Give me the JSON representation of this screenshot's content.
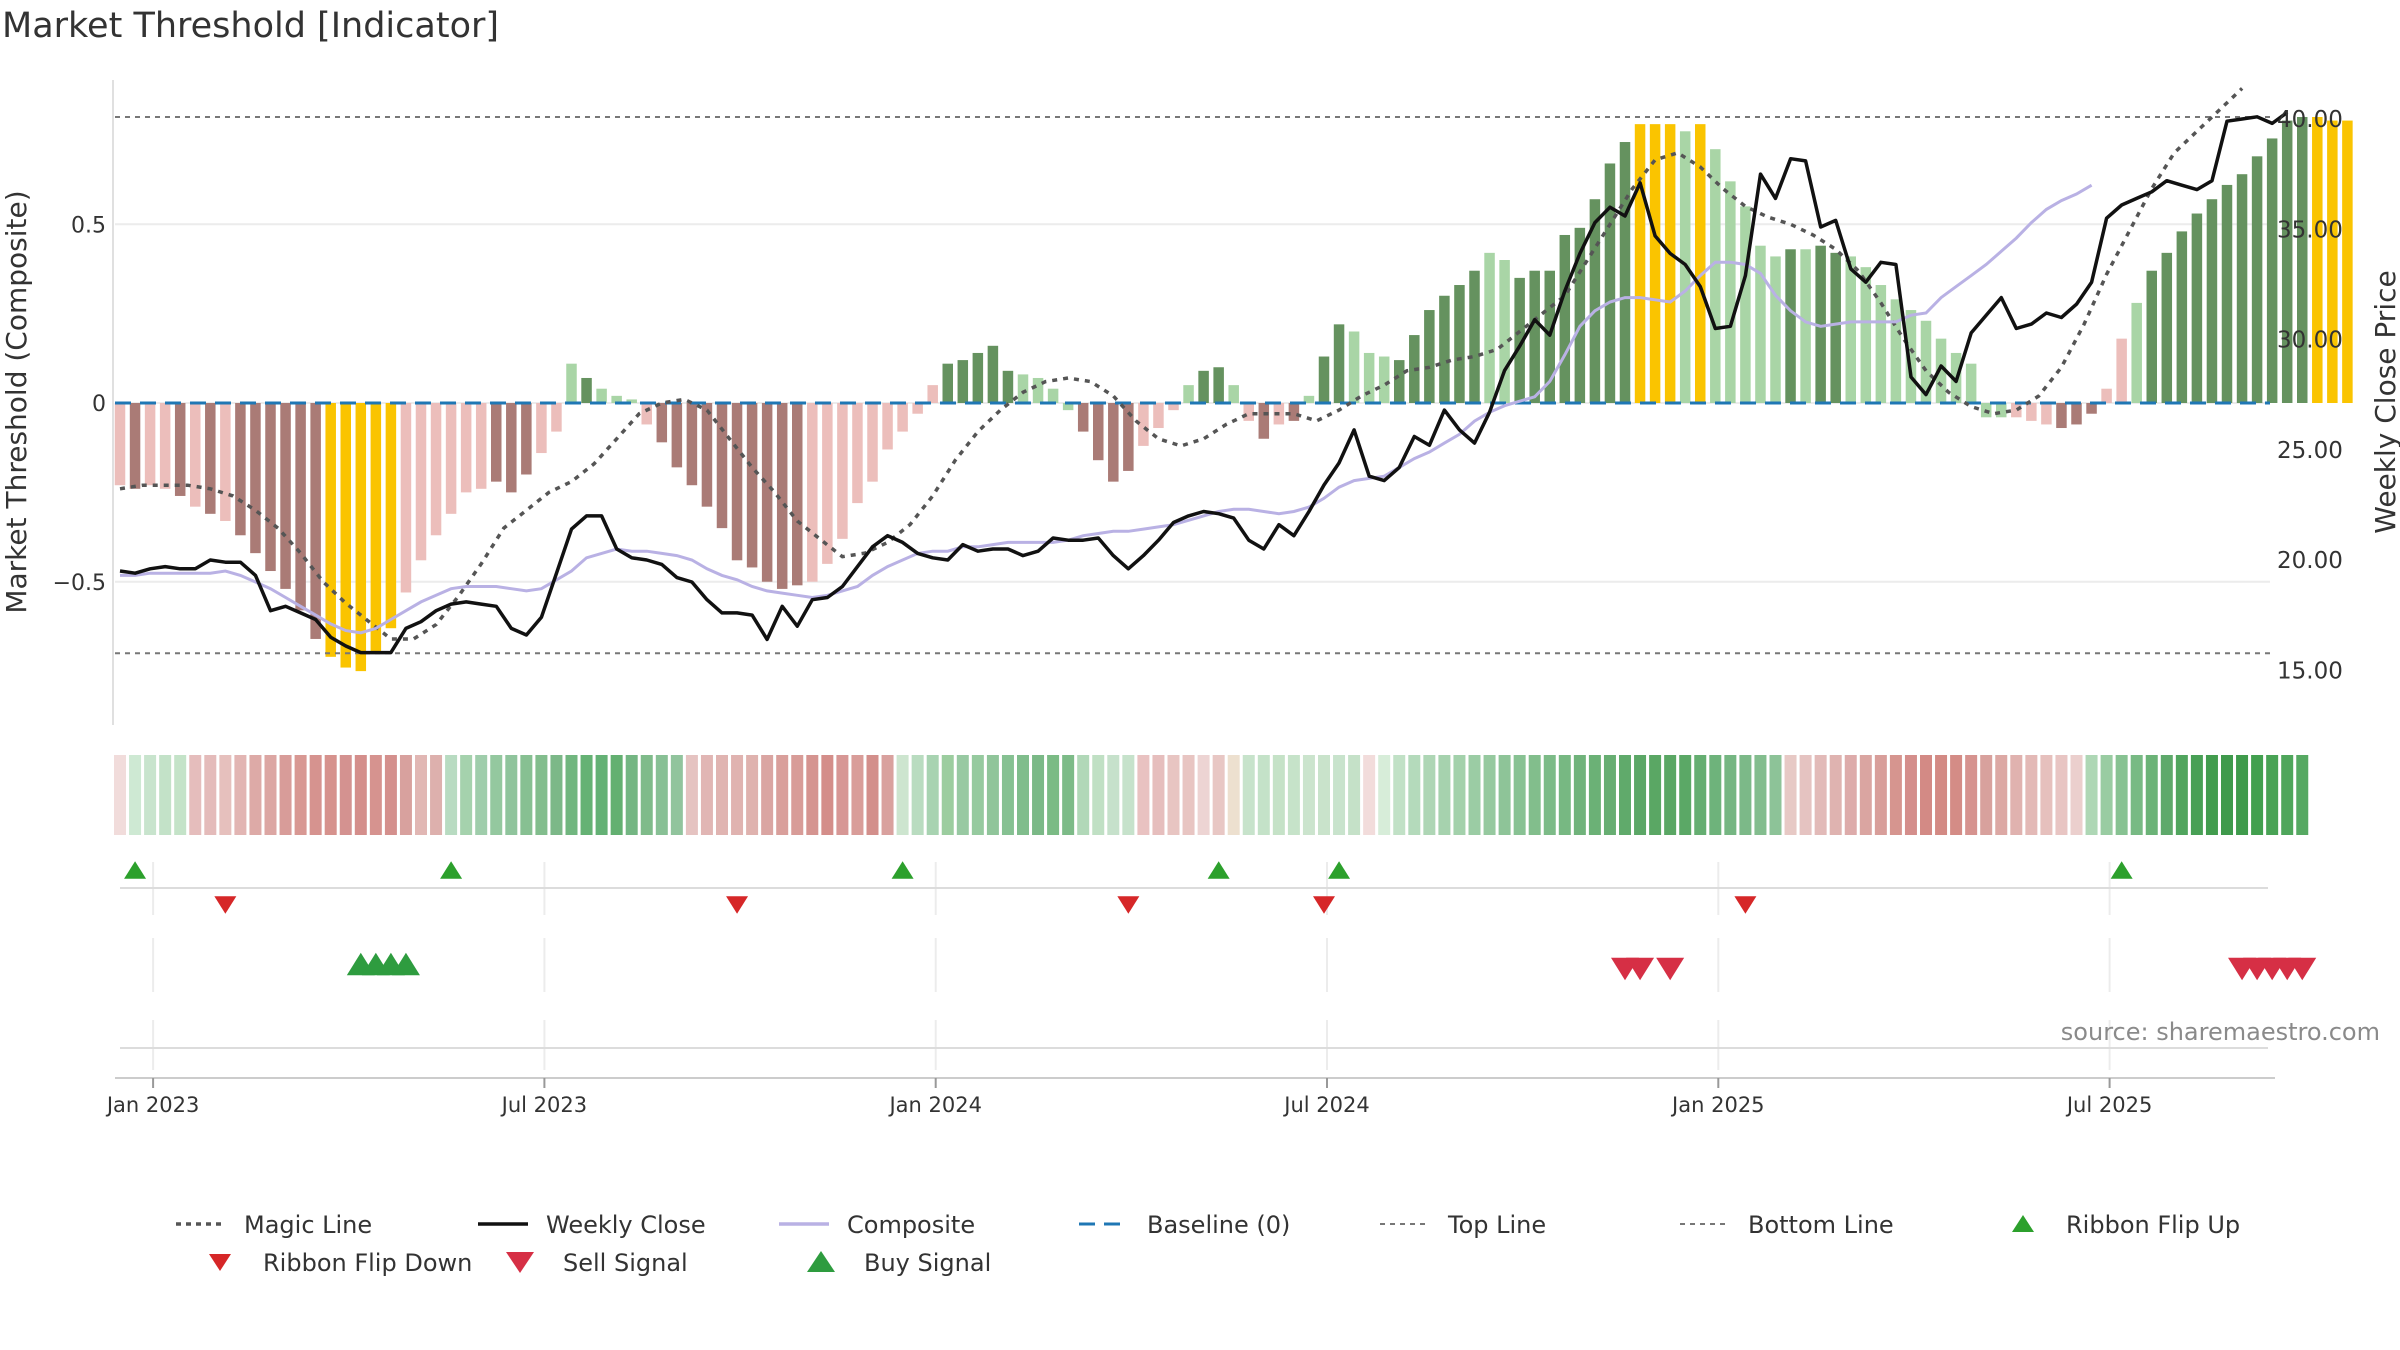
{
  "chart_data": {
    "type": "bar",
    "title": "Market Threshold [Indicator]",
    "ylabel_left": "Market Threshold (Composite)",
    "ylabel_right": "Weekly Close Price",
    "source": "source: sharemaestro.com",
    "ylim_left": [
      -0.9,
      0.9
    ],
    "ylim_right": [
      12.0,
      42.0
    ],
    "left_ticks": [
      {
        "v": 0.5,
        "label": "0.5"
      },
      {
        "v": 0,
        "label": "0"
      },
      {
        "v": -0.5,
        "label": "−0.5"
      }
    ],
    "right_ticks": [
      {
        "v": 40,
        "label": "40.00"
      },
      {
        "v": 35,
        "label": "35.00"
      },
      {
        "v": 30,
        "label": "30.00"
      },
      {
        "v": 25,
        "label": "25.00"
      },
      {
        "v": 20,
        "label": "20.00"
      },
      {
        "v": 15,
        "label": "15.00"
      }
    ],
    "x_ticks": [
      {
        "w": 2,
        "label": "Jan 2023"
      },
      {
        "w": 28,
        "label": "Jul 2023"
      },
      {
        "w": 54,
        "label": "Jan 2024"
      },
      {
        "w": 80,
        "label": "Jul 2024"
      },
      {
        "w": 106,
        "label": "Jan 2025"
      },
      {
        "w": 132,
        "label": "Jul 2025"
      }
    ],
    "top_line": 0.8,
    "bottom_line": -0.7,
    "composite": [
      -0.23,
      -0.24,
      -0.23,
      -0.24,
      -0.26,
      -0.29,
      -0.31,
      -0.33,
      -0.37,
      -0.42,
      -0.47,
      -0.52,
      -0.58,
      -0.66,
      -0.71,
      -0.74,
      -0.75,
      -0.7,
      -0.63,
      -0.53,
      -0.44,
      -0.37,
      -0.31,
      -0.25,
      -0.24,
      -0.22,
      -0.25,
      -0.2,
      -0.14,
      -0.08,
      0.11,
      0.07,
      0.04,
      0.02,
      0.01,
      -0.06,
      -0.11,
      -0.18,
      -0.23,
      -0.29,
      -0.35,
      -0.44,
      -0.46,
      -0.5,
      -0.52,
      -0.51,
      -0.5,
      -0.45,
      -0.38,
      -0.28,
      -0.22,
      -0.13,
      -0.08,
      -0.03,
      0.05,
      0.11,
      0.12,
      0.14,
      0.16,
      0.09,
      0.08,
      0.07,
      0.04,
      -0.02,
      -0.08,
      -0.16,
      -0.22,
      -0.19,
      -0.12,
      -0.07,
      -0.02,
      0.05,
      0.09,
      0.1,
      0.05,
      -0.05,
      -0.1,
      -0.06,
      -0.05,
      0.02,
      0.13,
      0.22,
      0.2,
      0.14,
      0.13,
      0.12,
      0.19,
      0.26,
      0.3,
      0.33,
      0.37,
      0.42,
      0.4,
      0.35,
      0.37,
      0.37,
      0.47,
      0.49,
      0.57,
      0.67,
      0.73,
      0.78,
      0.78,
      0.78,
      0.76,
      0.78,
      0.71,
      0.62,
      0.55,
      0.44,
      0.41,
      0.43,
      0.43,
      0.44,
      0.42,
      0.41,
      0.38,
      0.33,
      0.29,
      0.26,
      0.23,
      0.18,
      0.14,
      0.11,
      -0.04,
      -0.04,
      -0.04,
      -0.05,
      -0.06,
      -0.07,
      -0.06,
      -0.03,
      0.04,
      0.18,
      0.28,
      0.37,
      0.42,
      0.48,
      0.53,
      0.57,
      0.61,
      0.64,
      0.69,
      0.74,
      0.79,
      0.8,
      0.8,
      0.79,
      0.79
    ],
    "bar_colors": {
      "strong_up": "#65925f",
      "weak_up": "#a9d5a6",
      "strong_down": "#aa7b76",
      "weak_down": "#ecbebb",
      "extreme": "#fac400"
    },
    "bar_states": [
      "wd",
      "sd",
      "wd",
      "wd",
      "sd",
      "wd",
      "sd",
      "wd",
      "sd",
      "sd",
      "sd",
      "sd",
      "sd",
      "sd",
      "ex",
      "ex",
      "ex",
      "ex",
      "ex",
      "wd",
      "wd",
      "wd",
      "wd",
      "wd",
      "wd",
      "sd",
      "sd",
      "sd",
      "wd",
      "wd",
      "wu",
      "su",
      "wu",
      "wu",
      "wu",
      "wd",
      "sd",
      "sd",
      "sd",
      "sd",
      "sd",
      "sd",
      "sd",
      "sd",
      "sd",
      "sd",
      "wd",
      "wd",
      "wd",
      "wd",
      "wd",
      "wd",
      "wd",
      "wd",
      "wd",
      "su",
      "su",
      "su",
      "su",
      "su",
      "wu",
      "wu",
      "wu",
      "wu",
      "sd",
      "sd",
      "sd",
      "sd",
      "wd",
      "wd",
      "wd",
      "wu",
      "su",
      "su",
      "wu",
      "wd",
      "sd",
      "wd",
      "sd",
      "wu",
      "su",
      "su",
      "wu",
      "wu",
      "wu",
      "su",
      "su",
      "su",
      "su",
      "su",
      "su",
      "wu",
      "wu",
      "su",
      "su",
      "su",
      "su",
      "su",
      "su",
      "su",
      "su",
      "ex",
      "ex",
      "ex",
      "wu",
      "ex",
      "wu",
      "wu",
      "wu",
      "wu",
      "wu",
      "su",
      "wu",
      "su",
      "su",
      "wu",
      "wu",
      "wu",
      "wu",
      "wu",
      "wu",
      "wu",
      "wu",
      "wu",
      "wu",
      "wu",
      "wd",
      "wd",
      "wd",
      "sd",
      "sd",
      "sd",
      "wd",
      "wd",
      "wu",
      "su",
      "su",
      "su",
      "su",
      "su",
      "su",
      "su",
      "su",
      "su",
      "su",
      "su",
      "ex",
      "ex",
      "ex",
      "ex",
      "ex"
    ],
    "magic_line": [
      -0.24,
      -0.23,
      -0.23,
      -0.23,
      -0.24,
      -0.26,
      -0.3,
      -0.35,
      -0.42,
      -0.5,
      -0.56,
      -0.61,
      -0.66,
      -0.66,
      -0.62,
      -0.54,
      -0.45,
      -0.35,
      -0.3,
      -0.25,
      -0.22,
      -0.17,
      -0.1,
      -0.03,
      0.0,
      0.01,
      -0.02,
      -0.1,
      -0.18,
      -0.25,
      -0.33,
      -0.38,
      -0.43,
      -0.42,
      -0.39,
      -0.34,
      -0.26,
      -0.16,
      -0.08,
      -0.02,
      0.03,
      0.06,
      0.07,
      0.06,
      0.02,
      -0.05,
      -0.1,
      -0.12,
      -0.1,
      -0.06,
      -0.03,
      -0.03,
      -0.03,
      -0.05,
      -0.02,
      0.02,
      0.05,
      0.09,
      0.1,
      0.12,
      0.13,
      0.15,
      0.2,
      0.25,
      0.3,
      0.4,
      0.5,
      0.6,
      0.68,
      0.7,
      0.66,
      0.6,
      0.55,
      0.52,
      0.5,
      0.47,
      0.43,
      0.37,
      0.28,
      0.18,
      0.09,
      0.03,
      -0.01,
      -0.03,
      -0.02,
      0.02,
      0.1,
      0.22,
      0.36,
      0.48,
      0.6,
      0.7,
      0.76,
      0.82,
      0.88
    ],
    "magic_step": 1.5,
    "weekly_close": [
      19.5,
      19.4,
      19.6,
      19.7,
      19.6,
      19.6,
      20.0,
      19.9,
      19.9,
      19.3,
      17.7,
      17.9,
      17.6,
      17.3,
      16.5,
      16.1,
      15.8,
      15.8,
      15.8,
      16.9,
      17.2,
      17.7,
      18.0,
      18.1,
      18.0,
      17.9,
      16.9,
      16.6,
      17.4,
      19.4,
      21.4,
      22.0,
      22.0,
      20.5,
      20.1,
      20.0,
      19.8,
      19.2,
      19.0,
      18.2,
      17.6,
      17.6,
      17.5,
      16.4,
      17.9,
      17.0,
      18.2,
      18.3,
      18.8,
      19.7,
      20.6,
      21.1,
      20.8,
      20.3,
      20.1,
      20.0,
      20.7,
      20.4,
      20.5,
      20.5,
      20.2,
      20.4,
      21.0,
      20.9,
      20.9,
      21.0,
      20.2,
      19.6,
      20.2,
      20.9,
      21.7,
      22.0,
      22.2,
      22.1,
      21.9,
      20.9,
      20.5,
      21.6,
      21.1,
      22.2,
      23.4,
      24.4,
      25.9,
      23.8,
      23.6,
      24.2,
      25.6,
      25.2,
      26.8,
      25.9,
      25.3,
      26.7,
      28.6,
      29.7,
      30.9,
      30.2,
      32.2,
      33.9,
      35.3,
      36.0,
      35.6,
      37.1,
      34.7,
      33.9,
      33.4,
      32.4,
      30.5,
      30.6,
      32.9,
      37.5,
      36.4,
      38.2,
      38.1,
      35.1,
      35.4,
      33.2,
      32.6,
      33.5,
      33.4,
      28.3,
      27.5,
      28.8,
      28.1,
      30.3,
      31.1,
      31.9,
      30.5,
      30.7,
      31.2,
      31.0,
      31.6,
      32.6,
      35.5,
      36.1,
      36.4,
      36.7,
      37.2,
      37.0,
      36.8,
      37.2,
      39.9,
      40.0,
      40.1,
      39.8,
      40.3
    ],
    "composite_line": [
      19.3,
      19.3,
      19.4,
      19.4,
      19.4,
      19.4,
      19.4,
      19.5,
      19.3,
      19.0,
      18.7,
      18.3,
      17.9,
      17.5,
      17.1,
      16.8,
      16.7,
      16.9,
      17.3,
      17.7,
      18.1,
      18.4,
      18.7,
      18.8,
      18.8,
      18.8,
      18.7,
      18.6,
      18.7,
      19.1,
      19.5,
      20.1,
      20.3,
      20.5,
      20.4,
      20.4,
      20.3,
      20.2,
      20.0,
      19.6,
      19.3,
      19.1,
      18.8,
      18.6,
      18.5,
      18.4,
      18.3,
      18.4,
      18.6,
      18.8,
      19.3,
      19.7,
      20.0,
      20.3,
      20.4,
      20.4,
      20.6,
      20.6,
      20.7,
      20.8,
      20.8,
      20.8,
      20.8,
      20.9,
      21.1,
      21.2,
      21.3,
      21.3,
      21.4,
      21.5,
      21.6,
      21.8,
      22.0,
      22.2,
      22.3,
      22.3,
      22.2,
      22.1,
      22.2,
      22.4,
      22.8,
      23.3,
      23.6,
      23.7,
      23.8,
      24.2,
      24.6,
      24.9,
      25.3,
      25.7,
      26.3,
      26.7,
      27.0,
      27.2,
      27.4,
      28.1,
      29.3,
      30.6,
      31.3,
      31.7,
      31.9,
      31.9,
      31.8,
      31.7,
      32.2,
      32.9,
      33.5,
      33.5,
      33.4,
      33.0,
      32.0,
      31.3,
      30.8,
      30.6,
      30.7,
      30.8,
      30.8,
      30.8,
      30.8,
      31.1,
      31.2,
      31.9,
      32.4,
      32.9,
      33.4,
      34.0,
      34.6,
      35.3,
      35.9,
      36.3,
      36.6,
      37.0
    ],
    "ribbon_colors": [
      "#f1dcdb",
      "#cee9d3",
      "#c8e4cd",
      "#c3e2c8",
      "#c4e3c8",
      "#e5bdbc",
      "#e4bbba",
      "#e6c0bd",
      "#e2b5b3",
      "#ddaaa7",
      "#dca6a3",
      "#d89c99",
      "#d89893",
      "#d6938f",
      "#d6928d",
      "#d49290",
      "#d48e8b",
      "#d6938f",
      "#d4908d",
      "#d8a19e",
      "#e1b7b4",
      "#ddb0ad",
      "#b8dbc1",
      "#a5d2ad",
      "#9fcdab",
      "#94c89f",
      "#8fc49c",
      "#87c092",
      "#82bd8d",
      "#7cb888",
      "#71b67f",
      "#65b274",
      "#64b175",
      "#63b071",
      "#74b683",
      "#7fbb8a",
      "#88c095",
      "#91c49d",
      "#e5c3c1",
      "#e1b6b4",
      "#e0b4b1",
      "#e0b3b0",
      "#dfb2ae",
      "#daa5a2",
      "#d99f9b",
      "#d89c98",
      "#d59490",
      "#d48e8a",
      "#d79795",
      "#d99d99",
      "#d38f8b",
      "#d9a19e",
      "#cde5cf",
      "#b9dcc0",
      "#a8d3b1",
      "#9ccd9f",
      "#98c9a2",
      "#96ca9f",
      "#90c59a",
      "#86c192",
      "#80bd8c",
      "#7bb987",
      "#7bbb85",
      "#7dbb88",
      "#b1d8b8",
      "#c0e0c4",
      "#c6e1cb",
      "#c6e2cb",
      "#e9c2c1",
      "#e6bebd",
      "#e8c5c2",
      "#e8c5c2",
      "#edd4d3",
      "#e8c7c4",
      "#ede0cf",
      "#c7e3cb",
      "#c4e2c8",
      "#c5e2c7",
      "#c6e3c9",
      "#cbe4cd",
      "#c9e3cb",
      "#c8e3cc",
      "#c5e1c8",
      "#f2dcdb",
      "#d7edd9",
      "#c1e1c6",
      "#b4dabb",
      "#aed6b5",
      "#a6d2ae",
      "#a3d1ab",
      "#9bcca4",
      "#96c99f",
      "#8ec498",
      "#88c293",
      "#82be8c",
      "#7cbb87",
      "#77b882",
      "#70b37b",
      "#6bb176",
      "#67ae72",
      "#60aa6b",
      "#5ba766",
      "#5aa764",
      "#5aa764",
      "#5ba866",
      "#65ae71",
      "#6eb37b",
      "#75b682",
      "#7cb988",
      "#83bd8e",
      "#8dc398",
      "#e7c9c5",
      "#e5c3c1",
      "#e2bab8",
      "#dfb3b0",
      "#ddabaa",
      "#daa5a1",
      "#d89e9a",
      "#d6958f",
      "#d48e8b",
      "#d38a85",
      "#d38a84",
      "#d48c86",
      "#d6938f",
      "#d8a19d",
      "#dca8a4",
      "#e0b2af",
      "#e3b9b6",
      "#e6c0bd",
      "#e8c5c3",
      "#ebcfcd",
      "#aed7b5",
      "#99cca2",
      "#87c292",
      "#78ba84",
      "#6bb377",
      "#5ea96b",
      "#51a55e",
      "#48a055",
      "#429c4e",
      "#3f9a4c",
      "#3f9b4c",
      "#42a04f",
      "#49a355",
      "#4fa65b",
      "#56a962"
    ],
    "ribbon_flip_up": [
      1,
      22,
      52,
      73,
      81,
      133
    ],
    "ribbon_flip_down": [
      7,
      41,
      67,
      80,
      108
    ],
    "buy_signal": [
      16,
      17,
      18,
      19
    ],
    "sell_signal": [
      100,
      101,
      103,
      141,
      142,
      143,
      144,
      145
    ],
    "colors": {
      "magic_line": "#555555",
      "weekly_close": "#111111",
      "composite": "#b9b1e4",
      "baseline": "#1f77b4",
      "threshold": "#777777",
      "ribbon_up": "#2ca02c",
      "ribbon_down": "#d62728",
      "buy": "#2e9c3f",
      "sell": "#d62f45"
    },
    "legend": [
      {
        "key": "magic",
        "label": "Magic Line"
      },
      {
        "key": "close",
        "label": "Weekly Close"
      },
      {
        "key": "composite",
        "label": "Composite"
      },
      {
        "key": "baseline",
        "label": "Baseline (0)"
      },
      {
        "key": "top",
        "label": "Top Line"
      },
      {
        "key": "bottom",
        "label": "Bottom Line"
      },
      {
        "key": "flipup",
        "label": "Ribbon Flip Up"
      },
      {
        "key": "flipdown",
        "label": "Ribbon Flip Down"
      },
      {
        "key": "sell",
        "label": "Sell Signal"
      },
      {
        "key": "buy",
        "label": "Buy Signal"
      }
    ]
  }
}
